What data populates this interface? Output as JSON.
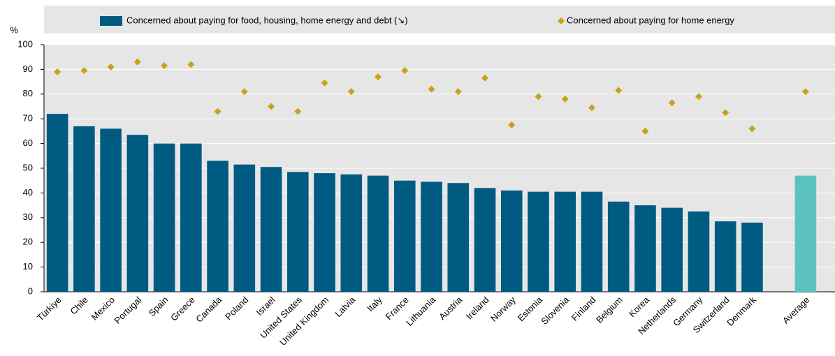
{
  "chart_data": {
    "type": "bar",
    "y_label": "%",
    "categories": [
      "Türkiye",
      "Chile",
      "Mexico",
      "Portugal",
      "Spain",
      "Greece",
      "Canada",
      "Poland",
      "Israel",
      "United States",
      "United Kingdom",
      "Latvia",
      "Italy",
      "France",
      "Lithuania",
      "Austria",
      "Ireland",
      "Norway",
      "Estonia",
      "Slovenia",
      "Finland",
      "Belgium",
      "Korea",
      "Netherlands",
      "Germany",
      "Switzerland",
      "Denmark",
      null,
      "Average"
    ],
    "series": [
      {
        "name": "Concerned about paying for food, housing, home energy and debt (↘)",
        "type": "bar",
        "color": "#005b82",
        "colors": [
          "#005b82",
          "#005b82",
          "#005b82",
          "#005b82",
          "#005b82",
          "#005b82",
          "#005b82",
          "#005b82",
          "#005b82",
          "#005b82",
          "#005b82",
          "#005b82",
          "#005b82",
          "#005b82",
          "#005b82",
          "#005b82",
          "#005b82",
          "#005b82",
          "#005b82",
          "#005b82",
          "#005b82",
          "#005b82",
          "#005b82",
          "#005b82",
          "#005b82",
          "#005b82",
          "#005b82",
          null,
          "#5bc2c0"
        ],
        "values": [
          72,
          67,
          66,
          63.5,
          60,
          60,
          53,
          51.5,
          50.5,
          48.5,
          48,
          47.5,
          47,
          45,
          44.5,
          44,
          42,
          41,
          40.5,
          40.5,
          40.5,
          36.5,
          35,
          34,
          32.5,
          28.5,
          28,
          null,
          47
        ]
      },
      {
        "name": "Concerned about paying for home energy",
        "type": "scatter",
        "color": "#c9a21a",
        "values": [
          89,
          89.5,
          91,
          93,
          91.5,
          92,
          73,
          81,
          75,
          73,
          84.5,
          81,
          87,
          89.5,
          82,
          81,
          86.5,
          67.5,
          79,
          78,
          74.5,
          81.5,
          65,
          76.5,
          79,
          72.5,
          66,
          null,
          81
        ]
      }
    ],
    "ylim": [
      0,
      100
    ],
    "yticks": [
      0,
      10,
      20,
      30,
      40,
      50,
      60,
      70,
      80,
      90,
      100
    ],
    "grid": true
  }
}
